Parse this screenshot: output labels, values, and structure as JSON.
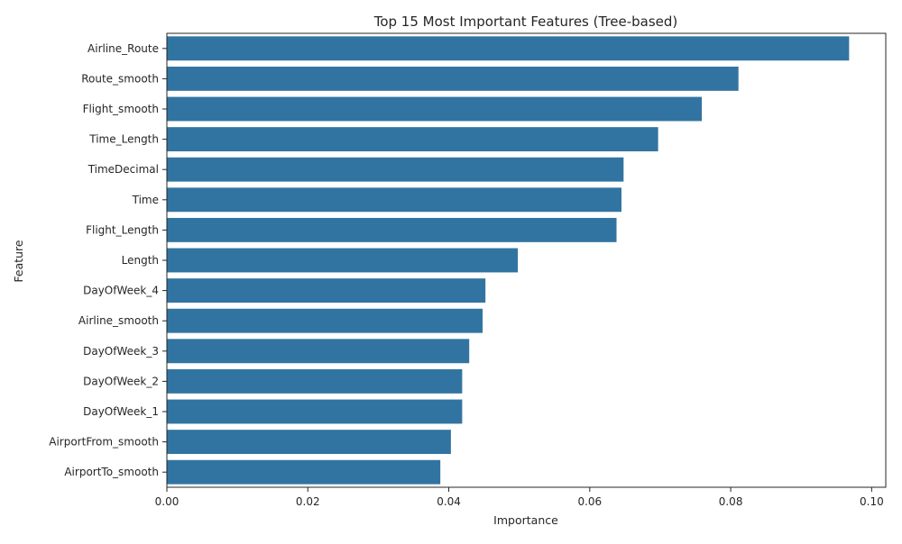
{
  "chart_data": {
    "type": "bar",
    "orientation": "horizontal",
    "title": "Top 15 Most Important Features (Tree-based)",
    "xlabel": "Importance",
    "ylabel": "Feature",
    "categories": [
      "Airline_Route",
      "Route_smooth",
      "Flight_smooth",
      "Time_Length",
      "TimeDecimal",
      "Time",
      "Flight_Length",
      "Length",
      "DayOfWeek_4",
      "Airline_smooth",
      "DayOfWeek_3",
      "DayOfWeek_2",
      "DayOfWeek_1",
      "AirportFrom_smooth",
      "AirportTo_smooth"
    ],
    "values": [
      0.0968,
      0.0811,
      0.0759,
      0.0697,
      0.0648,
      0.0645,
      0.0638,
      0.0498,
      0.0452,
      0.0448,
      0.0429,
      0.0419,
      0.0419,
      0.0403,
      0.0388
    ],
    "xlim": [
      0,
      0.102
    ],
    "xticks": [
      0.0,
      0.02,
      0.04,
      0.06,
      0.08,
      0.1
    ],
    "xtick_labels": [
      "0.00",
      "0.02",
      "0.04",
      "0.06",
      "0.08",
      "0.10"
    ],
    "bar_color": "#3274a1",
    "grid": false
  }
}
